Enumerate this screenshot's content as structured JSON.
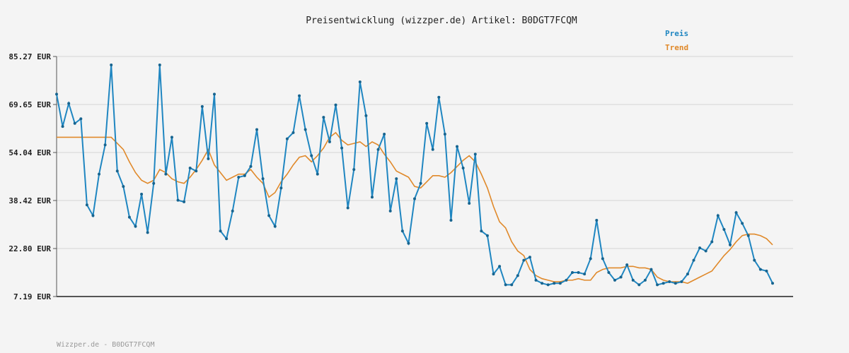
{
  "colors": {
    "price": "#1f86c1",
    "trend": "#e0892a",
    "grid": "#dedede",
    "background": "#f4f4f4"
  },
  "chart_data": {
    "type": "line",
    "title": "Preisentwicklung (wizzper.de) Artikel: B0DGT7FCQM",
    "ylabel": "",
    "xlabel": "",
    "y_unit": "EUR",
    "yticks": [
      "85.27 EUR",
      "69.65 EUR",
      "54.04 EUR",
      "38.42 EUR",
      "22.80 EUR",
      "7.19 EUR"
    ],
    "ytick_values": [
      85.27,
      69.65,
      54.04,
      38.42,
      22.8,
      7.19
    ],
    "ylim": [
      7.19,
      85.27
    ],
    "grid": true,
    "legend_placement": "top-right",
    "series": [
      {
        "name": "Preis",
        "values": [
          73,
          62.5,
          70,
          63.5,
          65,
          37,
          33.5,
          47,
          56.5,
          82.5,
          48,
          43,
          33,
          30,
          40.5,
          28,
          44,
          82.5,
          47,
          59,
          38.5,
          38,
          49,
          48,
          69,
          52,
          73,
          28.5,
          26,
          35,
          46,
          46.5,
          49.5,
          61.5,
          45.5,
          33.5,
          30,
          42.5,
          58.5,
          60.5,
          72.5,
          61.5,
          53,
          47,
          65.5,
          57.5,
          69.5,
          55.5,
          36,
          48.5,
          77,
          66,
          39.5,
          55,
          60,
          35,
          45.5,
          28.5,
          24.5,
          39,
          44,
          63.5,
          55,
          72,
          60,
          32,
          56,
          49,
          37.5,
          53.5,
          28.5,
          27,
          14.5,
          17,
          11,
          11,
          14,
          19,
          20,
          12.5,
          11.5,
          11,
          11.5,
          11.5,
          12.5,
          15,
          15,
          14.5,
          19.5,
          32,
          19.5,
          15,
          12.5,
          13.5,
          17.5,
          12.5,
          11,
          12.5,
          16,
          11,
          11.5,
          12,
          11.5,
          12,
          14.5,
          19,
          23,
          22,
          25,
          33.5,
          29,
          24,
          34.5,
          31,
          27,
          19,
          16,
          15.5,
          11.5
        ]
      },
      {
        "name": "Trend",
        "values": [
          59,
          59,
          59,
          59,
          59,
          59,
          59,
          59,
          59,
          59,
          57,
          55,
          51,
          47.5,
          45,
          44,
          45,
          48.5,
          47.5,
          45.5,
          44.5,
          44,
          46,
          48.5,
          51.5,
          55,
          50,
          47.5,
          45,
          46,
          47,
          47,
          48.5,
          46,
          44,
          39.5,
          41,
          44.5,
          47,
          50,
          52.5,
          53,
          51,
          53,
          55.5,
          59,
          60.5,
          58,
          56.5,
          57,
          57.5,
          56,
          57.5,
          56.5,
          53.5,
          51,
          48,
          47,
          46,
          43,
          42.5,
          44.5,
          46.5,
          46.5,
          46,
          47.5,
          49.5,
          51.5,
          53,
          51,
          47,
          42.5,
          36.5,
          31.5,
          29.5,
          25,
          22,
          20.5,
          16,
          14,
          13,
          12.5,
          12,
          12,
          12.5,
          12.5,
          13,
          12.5,
          12.5,
          15,
          16,
          16.5,
          16.5,
          16.5,
          17,
          17,
          16.5,
          16.5,
          16,
          13.5,
          12.5,
          12,
          12,
          12,
          11.5,
          12.5,
          13.5,
          14.5,
          15.5,
          18,
          20.5,
          22.5,
          25,
          27,
          27.5,
          27.5,
          27,
          26,
          24
        ]
      }
    ]
  },
  "footer": {
    "text": "Wizzper.de - B0DGT7FCQM"
  }
}
